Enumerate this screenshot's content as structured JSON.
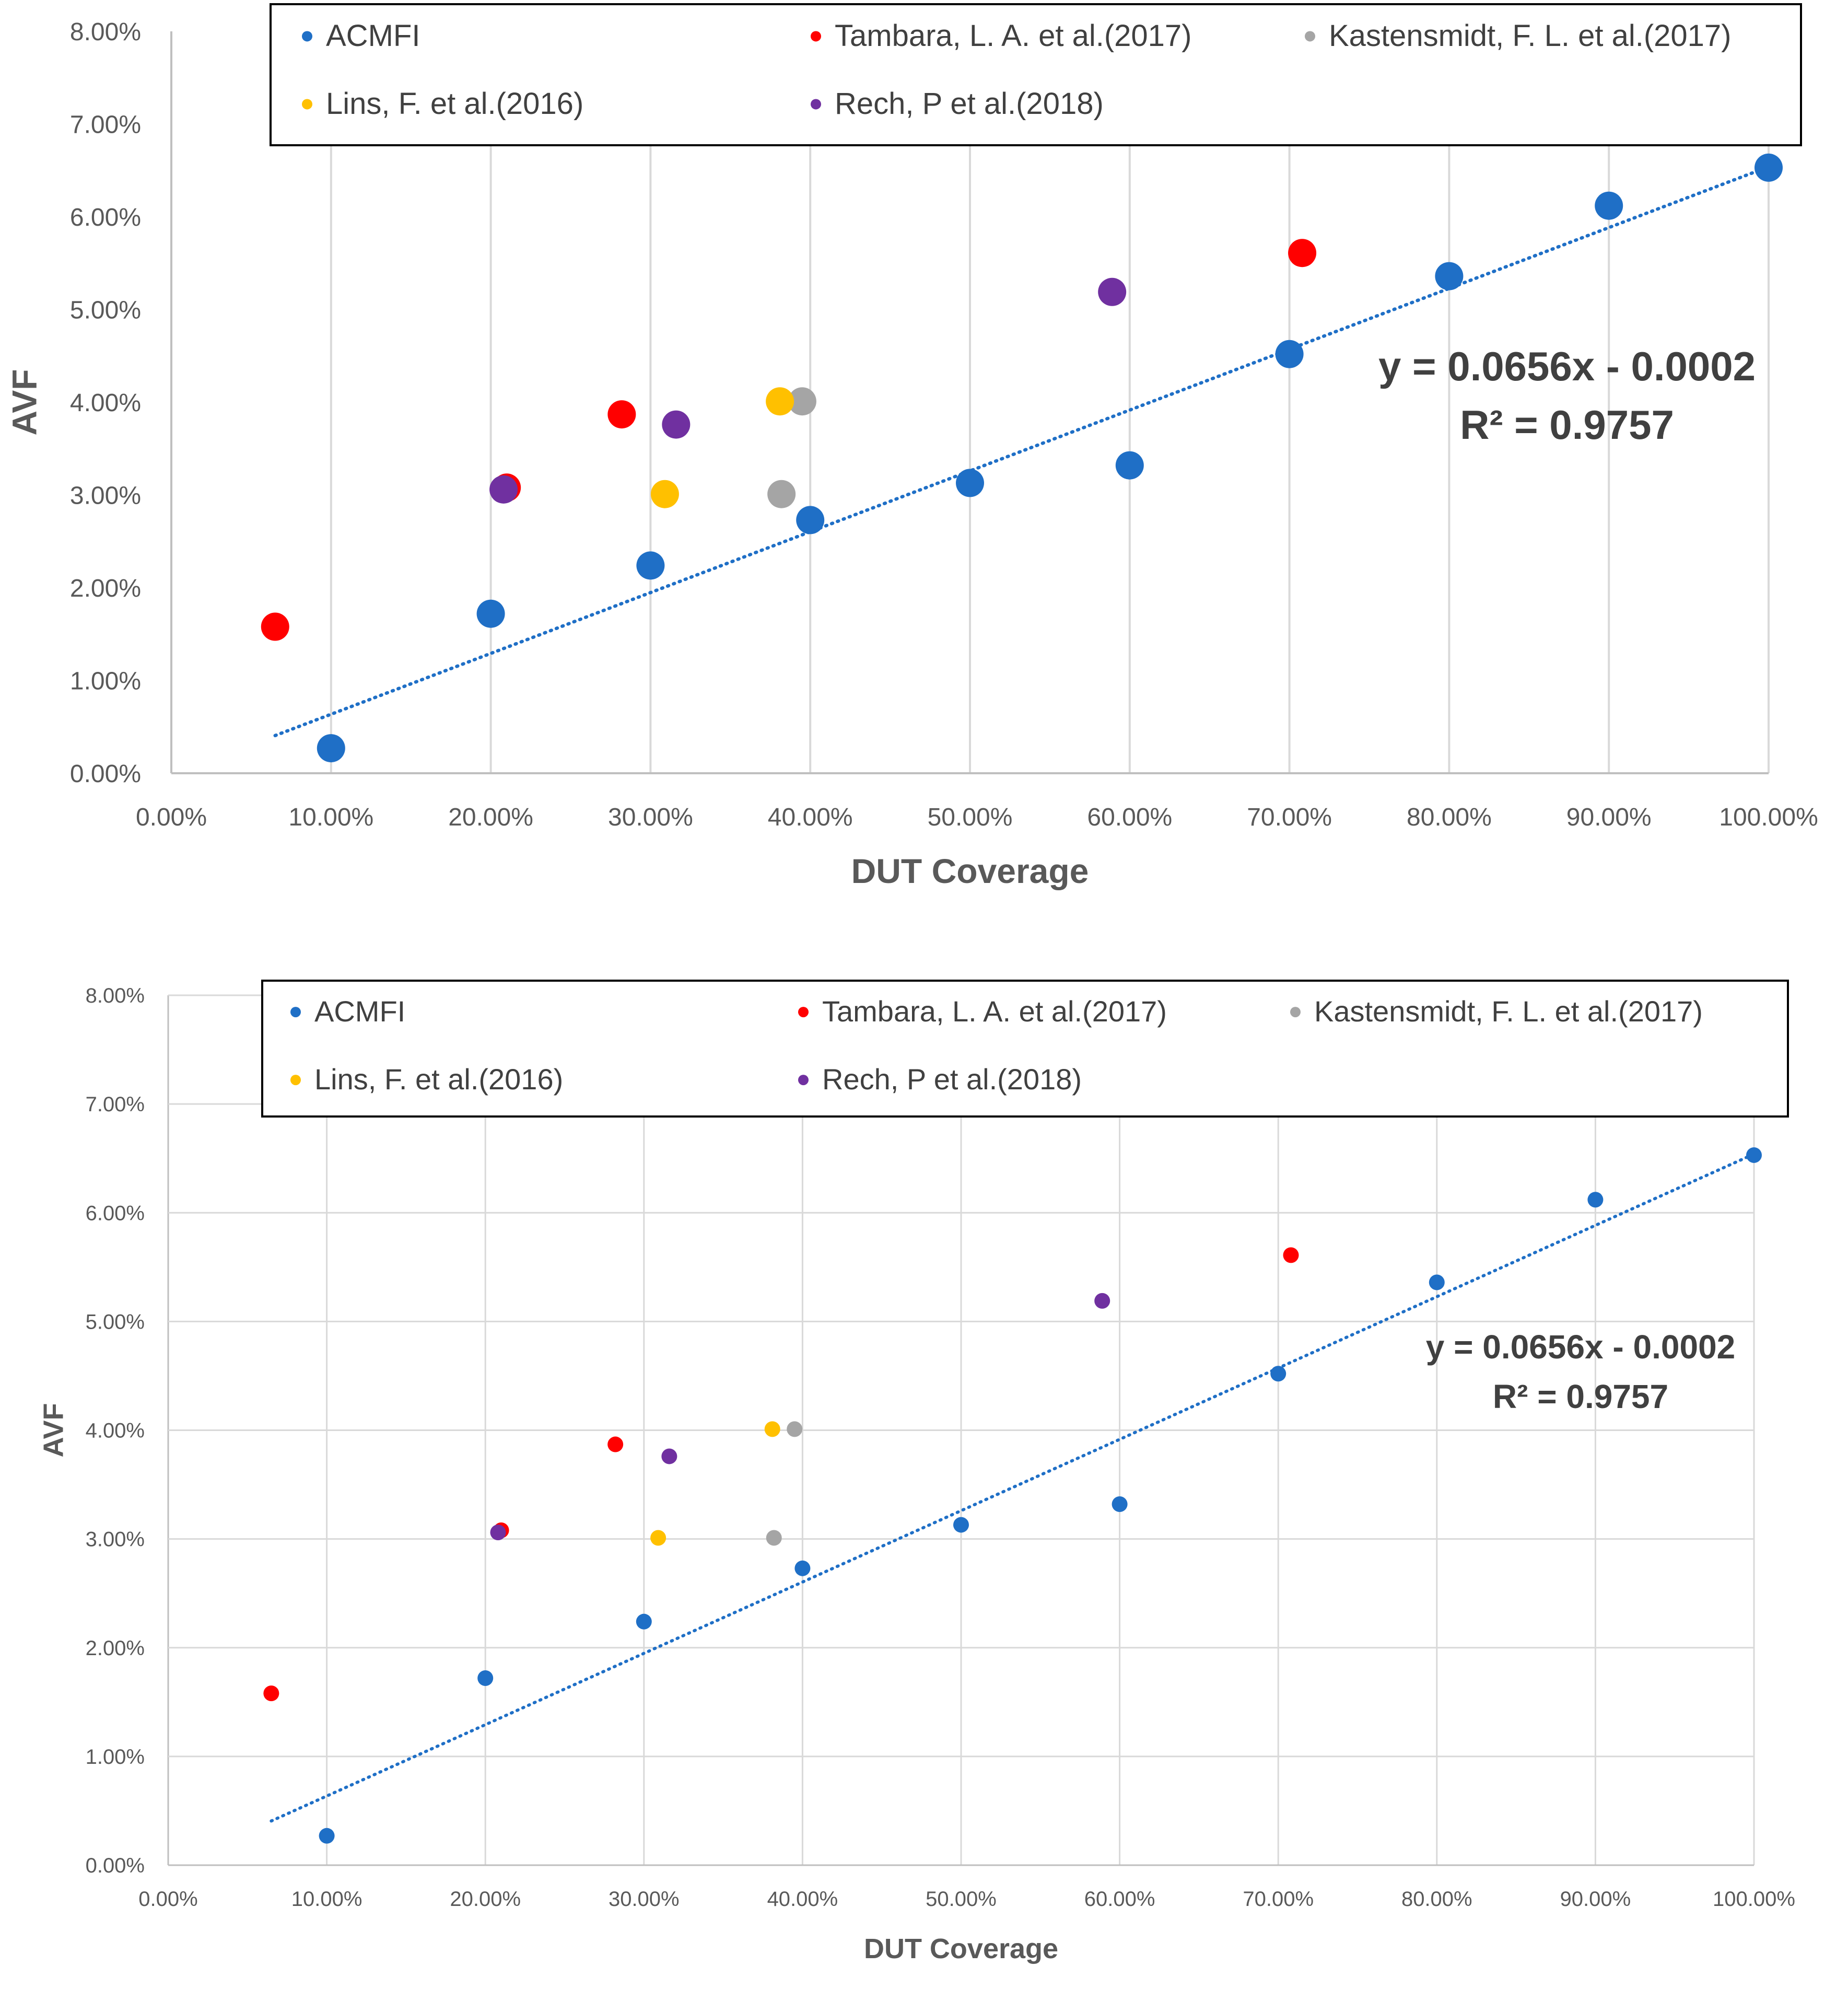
{
  "chart_data": [
    {
      "type": "scatter",
      "title": "",
      "xlabel": "DUT Coverage",
      "ylabel": "AVF",
      "xlim": [
        0,
        1.0
      ],
      "ylim": [
        0,
        0.08
      ],
      "x_ticks": [
        "0.00%",
        "10.00%",
        "20.00%",
        "30.00%",
        "40.00%",
        "50.00%",
        "60.00%",
        "70.00%",
        "80.00%",
        "90.00%",
        "100.00%"
      ],
      "y_ticks": [
        "0.00%",
        "1.00%",
        "2.00%",
        "3.00%",
        "4.00%",
        "5.00%",
        "6.00%",
        "7.00%",
        "8.00%"
      ],
      "grid": "vertical",
      "legend_position": "top",
      "series": [
        {
          "name": "ACMFI",
          "color": "#1f6fc6",
          "x": [
            0.1,
            0.2,
            0.3,
            0.4,
            0.5,
            0.6,
            0.7,
            0.8,
            0.9,
            1.0
          ],
          "y": [
            0.0027,
            0.0172,
            0.0224,
            0.0273,
            0.0313,
            0.0332,
            0.0452,
            0.0536,
            0.0612,
            0.0653
          ]
        },
        {
          "name": "Tambara, L. A. et al.(2017)",
          "color": "#ff0000",
          "x": [
            0.065,
            0.21,
            0.282,
            0.708
          ],
          "y": [
            0.0158,
            0.0308,
            0.0387,
            0.0561
          ]
        },
        {
          "name": "Kastensmidt, F. L. et al.(2017)",
          "color": "#a5a5a5",
          "x": [
            0.382,
            0.395
          ],
          "y": [
            0.0301,
            0.0401
          ]
        },
        {
          "name": "Lins, F. et al.(2016)",
          "color": "#ffc000",
          "x": [
            0.309,
            0.381
          ],
          "y": [
            0.0301,
            0.0401
          ]
        },
        {
          "name": "Rech, P et al.(2018)",
          "color": "#7030a0",
          "x": [
            0.208,
            0.316,
            0.589
          ],
          "y": [
            0.0306,
            0.0376,
            0.0519
          ]
        }
      ],
      "trendline": {
        "slope": 0.0656,
        "intercept": -0.0002,
        "x_range": [
          0.065,
          1.0
        ],
        "color": "#1f6fc6"
      },
      "annotations": [
        "y = 0.0656x - 0.0002",
        "R² = 0.9757"
      ]
    },
    {
      "type": "scatter",
      "title": "",
      "xlabel": "DUT Coverage",
      "ylabel": "AVF",
      "xlim": [
        0,
        1.0
      ],
      "ylim": [
        0,
        0.08
      ],
      "x_ticks": [
        "0.00%",
        "10.00%",
        "20.00%",
        "30.00%",
        "40.00%",
        "50.00%",
        "60.00%",
        "70.00%",
        "80.00%",
        "90.00%",
        "100.00%"
      ],
      "y_ticks": [
        "0.00%",
        "1.00%",
        "2.00%",
        "3.00%",
        "4.00%",
        "5.00%",
        "6.00%",
        "7.00%",
        "8.00%"
      ],
      "grid": "both",
      "legend_position": "top",
      "series": [
        {
          "name": "ACMFI",
          "color": "#1f6fc6",
          "x": [
            0.1,
            0.2,
            0.3,
            0.4,
            0.5,
            0.6,
            0.7,
            0.8,
            0.9,
            1.0
          ],
          "y": [
            0.0027,
            0.0172,
            0.0224,
            0.0273,
            0.0313,
            0.0332,
            0.0452,
            0.0536,
            0.0612,
            0.0653
          ]
        },
        {
          "name": "Tambara, L. A. et al.(2017)",
          "color": "#ff0000",
          "x": [
            0.065,
            0.21,
            0.282,
            0.708
          ],
          "y": [
            0.0158,
            0.0308,
            0.0387,
            0.0561
          ]
        },
        {
          "name": "Kastensmidt, F. L. et al.(2017)",
          "color": "#a5a5a5",
          "x": [
            0.382,
            0.395
          ],
          "y": [
            0.0301,
            0.0401
          ]
        },
        {
          "name": "Lins, F. et al.(2016)",
          "color": "#ffc000",
          "x": [
            0.309,
            0.381
          ],
          "y": [
            0.0301,
            0.0401
          ]
        },
        {
          "name": "Rech, P et al.(2018)",
          "color": "#7030a0",
          "x": [
            0.208,
            0.316,
            0.589
          ],
          "y": [
            0.0306,
            0.0376,
            0.0519
          ]
        }
      ],
      "trendline": {
        "slope": 0.0656,
        "intercept": -0.0002,
        "x_range": [
          0.065,
          1.0
        ],
        "color": "#1f6fc6"
      },
      "annotations": [
        "y = 0.0656x - 0.0002",
        "R² = 0.9757"
      ]
    }
  ]
}
